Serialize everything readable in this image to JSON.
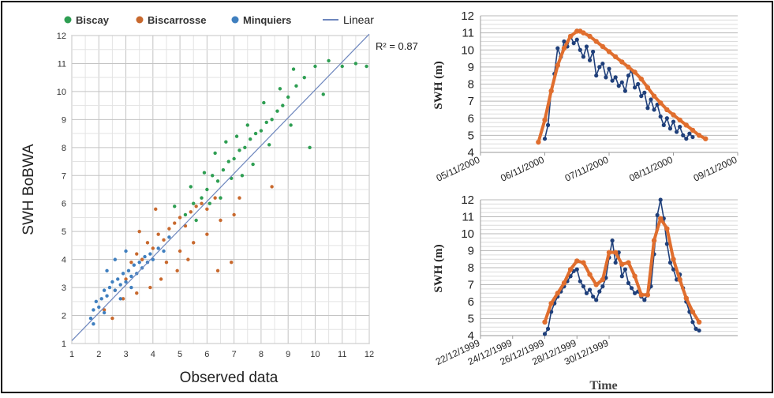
{
  "chart_data": [
    {
      "type": "scatter",
      "xlabel": "Observed data",
      "ylabel": "SWH BoBWA",
      "xlim": [
        1,
        12
      ],
      "ylim": [
        1,
        12
      ],
      "x_ticks": [
        "1",
        "2",
        "3",
        "4",
        "5",
        "6",
        "7",
        "8",
        "9",
        "10",
        "11",
        "12"
      ],
      "y_ticks": [
        "1",
        "2",
        "3",
        "4",
        "5",
        "6",
        "7",
        "8",
        "9",
        "10",
        "11",
        "12"
      ],
      "grid": true,
      "legend_position": "top",
      "legend": [
        {
          "label": "Biscay",
          "color": "#2e9e52",
          "marker": "dot"
        },
        {
          "label": "Biscarrosse",
          "color": "#c8692e",
          "marker": "dot"
        },
        {
          "label": "Minquiers",
          "color": "#3f7fbf",
          "marker": "dot"
        },
        {
          "label": "Linear",
          "color": "#6d86bd",
          "marker": "line"
        }
      ],
      "annotation": "R² = 0.87",
      "trendline": {
        "x": [
          1,
          12
        ],
        "y": [
          1.1,
          12.05
        ]
      },
      "series": [
        {
          "name": "Biscay",
          "color": "#2e9e52",
          "points": [
            [
              5.2,
              5.6
            ],
            [
              5.5,
              6.0
            ],
            [
              5.8,
              6.2
            ],
            [
              6.0,
              6.5
            ],
            [
              6.2,
              7.0
            ],
            [
              6.4,
              6.8
            ],
            [
              6.6,
              7.2
            ],
            [
              6.8,
              7.5
            ],
            [
              7.0,
              7.6
            ],
            [
              7.2,
              7.9
            ],
            [
              7.4,
              8.0
            ],
            [
              7.6,
              8.3
            ],
            [
              7.8,
              8.5
            ],
            [
              8.0,
              8.6
            ],
            [
              8.2,
              8.9
            ],
            [
              8.4,
              9.0
            ],
            [
              8.6,
              9.3
            ],
            [
              8.8,
              9.5
            ],
            [
              9.0,
              9.8
            ],
            [
              9.3,
              10.2
            ],
            [
              9.6,
              10.5
            ],
            [
              10.0,
              10.9
            ],
            [
              10.5,
              11.1
            ],
            [
              11.0,
              10.9
            ],
            [
              11.5,
              11.0
            ],
            [
              11.9,
              10.9
            ],
            [
              4.8,
              5.9
            ],
            [
              5.4,
              6.6
            ],
            [
              5.9,
              7.1
            ],
            [
              6.3,
              7.8
            ],
            [
              6.7,
              8.2
            ],
            [
              7.1,
              8.4
            ],
            [
              7.5,
              8.8
            ],
            [
              8.1,
              9.6
            ],
            [
              8.7,
              10.1
            ],
            [
              9.2,
              10.8
            ],
            [
              6.1,
              6.0
            ],
            [
              6.9,
              6.9
            ],
            [
              7.7,
              7.4
            ],
            [
              8.3,
              8.1
            ],
            [
              9.1,
              8.8
            ],
            [
              9.8,
              8.0
            ],
            [
              10.3,
              9.9
            ],
            [
              5.6,
              5.4
            ],
            [
              6.5,
              6.2
            ],
            [
              7.3,
              7.0
            ]
          ]
        },
        {
          "name": "Biscarrosse",
          "color": "#c8692e",
          "points": [
            [
              2.2,
              2.2
            ],
            [
              2.6,
              2.9
            ],
            [
              3.0,
              3.3
            ],
            [
              3.2,
              3.9
            ],
            [
              3.4,
              4.2
            ],
            [
              3.6,
              4.0
            ],
            [
              3.8,
              4.6
            ],
            [
              4.0,
              4.4
            ],
            [
              4.2,
              4.9
            ],
            [
              4.4,
              4.7
            ],
            [
              4.6,
              5.1
            ],
            [
              4.8,
              5.3
            ],
            [
              5.0,
              5.5
            ],
            [
              5.2,
              5.2
            ],
            [
              5.4,
              5.7
            ],
            [
              5.6,
              5.9
            ],
            [
              5.8,
              6.0
            ],
            [
              6.0,
              5.8
            ],
            [
              6.3,
              6.2
            ],
            [
              3.5,
              5.0
            ],
            [
              4.1,
              5.8
            ],
            [
              4.5,
              3.9
            ],
            [
              5.0,
              4.3
            ],
            [
              5.5,
              4.6
            ],
            [
              6.0,
              4.9
            ],
            [
              6.5,
              5.4
            ],
            [
              7.0,
              5.6
            ],
            [
              7.2,
              6.2
            ],
            [
              8.4,
              6.6
            ],
            [
              6.9,
              3.9
            ],
            [
              6.4,
              3.6
            ],
            [
              5.3,
              4.0
            ],
            [
              4.9,
              3.6
            ],
            [
              4.3,
              3.3
            ],
            [
              3.9,
              3.0
            ],
            [
              3.4,
              2.8
            ],
            [
              2.9,
              2.6
            ],
            [
              2.5,
              1.9
            ]
          ]
        },
        {
          "name": "Minquiers",
          "color": "#3f7fbf",
          "points": [
            [
              1.7,
              1.9
            ],
            [
              1.8,
              2.2
            ],
            [
              1.9,
              2.5
            ],
            [
              2.0,
              2.3
            ],
            [
              2.1,
              2.6
            ],
            [
              2.2,
              2.9
            ],
            [
              2.3,
              2.7
            ],
            [
              2.4,
              3.0
            ],
            [
              2.5,
              3.2
            ],
            [
              2.6,
              2.9
            ],
            [
              2.7,
              3.3
            ],
            [
              2.8,
              3.1
            ],
            [
              2.9,
              3.5
            ],
            [
              3.0,
              3.2
            ],
            [
              3.1,
              3.6
            ],
            [
              3.2,
              3.4
            ],
            [
              3.3,
              3.8
            ],
            [
              3.4,
              3.5
            ],
            [
              3.5,
              3.9
            ],
            [
              3.6,
              3.7
            ],
            [
              3.7,
              4.1
            ],
            [
              3.8,
              3.9
            ],
            [
              3.9,
              4.2
            ],
            [
              4.0,
              4.0
            ],
            [
              4.2,
              4.4
            ],
            [
              4.4,
              4.3
            ],
            [
              4.6,
              4.8
            ],
            [
              2.3,
              3.6
            ],
            [
              2.6,
              4.0
            ],
            [
              3.0,
              4.3
            ],
            [
              1.8,
              1.7
            ],
            [
              2.2,
              2.1
            ],
            [
              2.8,
              2.6
            ],
            [
              3.2,
              3.0
            ]
          ]
        }
      ]
    },
    {
      "type": "line",
      "ylabel": "SWH (m)",
      "ylim": [
        4,
        12
      ],
      "y_ticks": [
        "4",
        "5",
        "6",
        "7",
        "8",
        "9",
        "10",
        "11",
        "12"
      ],
      "x_ticks": [
        "05/11/2000",
        "06/11/2000",
        "07/11/2000",
        "08/11/2000",
        "09/11/2000"
      ],
      "grid": "horizontal",
      "series": [
        {
          "color": "#1f3f7a",
          "marker": "dot",
          "x": [
            1.0,
            1.05,
            1.1,
            1.15,
            1.2,
            1.25,
            1.3,
            1.35,
            1.4,
            1.45,
            1.5,
            1.55,
            1.6,
            1.65,
            1.7,
            1.75,
            1.8,
            1.85,
            1.9,
            1.95,
            2.0,
            2.05,
            2.1,
            2.15,
            2.2,
            2.25,
            2.3,
            2.35,
            2.4,
            2.45,
            2.5,
            2.55,
            2.6,
            2.65,
            2.7,
            2.75,
            2.8,
            2.85,
            2.9,
            2.95,
            3.0,
            3.05,
            3.1,
            3.15,
            3.2,
            3.25,
            3.3
          ],
          "y": [
            4.8,
            5.6,
            7.6,
            8.6,
            10.1,
            9.6,
            10.5,
            10.2,
            10.8,
            10.4,
            10.6,
            10.0,
            9.6,
            10.2,
            9.4,
            9.9,
            8.5,
            9.0,
            9.2,
            8.4,
            8.9,
            8.2,
            8.4,
            7.9,
            8.1,
            7.6,
            8.5,
            8.8,
            7.8,
            8.0,
            7.3,
            7.5,
            6.6,
            7.1,
            6.5,
            6.8,
            6.1,
            5.6,
            6.0,
            5.4,
            5.8,
            5.2,
            5.5,
            5.0,
            4.8,
            5.1,
            4.9
          ]
        },
        {
          "color": "#e06e2e",
          "marker": "dot",
          "x": [
            0.9,
            1.0,
            1.1,
            1.2,
            1.3,
            1.4,
            1.5,
            1.55,
            1.6,
            1.7,
            1.8,
            1.9,
            2.0,
            2.1,
            2.2,
            2.3,
            2.4,
            2.5,
            2.6,
            2.7,
            2.8,
            2.9,
            3.0,
            3.1,
            3.2,
            3.3,
            3.4,
            3.5
          ],
          "y": [
            4.6,
            5.9,
            7.6,
            9.1,
            10.1,
            10.8,
            11.1,
            11.1,
            11.0,
            10.8,
            10.5,
            10.2,
            9.9,
            9.6,
            9.3,
            9.0,
            8.7,
            8.3,
            7.8,
            7.3,
            6.9,
            6.5,
            6.2,
            5.9,
            5.6,
            5.3,
            5.0,
            4.8
          ]
        }
      ]
    },
    {
      "type": "line",
      "ylabel": "SWH (m)",
      "xlabel": "Time",
      "ylim": [
        4,
        12
      ],
      "y_ticks": [
        "4",
        "5",
        "6",
        "7",
        "8",
        "9",
        "10",
        "11",
        "12"
      ],
      "x_ticks": [
        "22/12/1999",
        "24/12/1999",
        "26/12/1999",
        "28/12/1999",
        "30/12/1999"
      ],
      "grid": "horizontal",
      "series": [
        {
          "color": "#1f3f7a",
          "marker": "dot",
          "x": [
            2.0,
            2.1,
            2.2,
            2.3,
            2.4,
            2.5,
            2.6,
            2.7,
            2.8,
            2.9,
            3.0,
            3.1,
            3.2,
            3.3,
            3.4,
            3.5,
            3.6,
            3.7,
            3.8,
            3.9,
            4.0,
            4.1,
            4.2,
            4.3,
            4.4,
            4.5,
            4.6,
            4.7,
            4.8,
            4.9,
            5.0,
            5.1,
            5.2,
            5.3,
            5.4,
            5.5,
            5.6,
            5.7,
            5.8,
            5.9,
            6.0,
            6.1,
            6.2,
            6.3,
            6.4,
            6.5,
            6.6,
            6.7,
            6.8
          ],
          "y": [
            4.1,
            4.4,
            5.4,
            5.9,
            6.3,
            6.6,
            6.9,
            7.2,
            7.5,
            7.8,
            7.9,
            7.2,
            6.9,
            6.5,
            6.7,
            6.3,
            6.1,
            6.6,
            6.9,
            7.4,
            8.6,
            9.6,
            8.3,
            8.9,
            7.5,
            7.9,
            7.1,
            6.8,
            6.5,
            6.6,
            6.3,
            6.1,
            6.4,
            6.9,
            8.8,
            11.1,
            12.0,
            10.9,
            9.4,
            8.3,
            7.9,
            7.3,
            7.6,
            6.8,
            6.0,
            5.4,
            4.8,
            4.4,
            4.3
          ]
        },
        {
          "color": "#e06e2e",
          "marker": "dot",
          "x": [
            2.0,
            2.2,
            2.4,
            2.6,
            2.8,
            3.0,
            3.2,
            3.4,
            3.6,
            3.8,
            4.0,
            4.2,
            4.4,
            4.6,
            4.8,
            5.0,
            5.2,
            5.4,
            5.6,
            5.8,
            6.0,
            6.2,
            6.4,
            6.6,
            6.8
          ],
          "y": [
            4.8,
            5.9,
            6.5,
            7.1,
            7.9,
            8.4,
            8.3,
            7.6,
            7.0,
            7.3,
            8.9,
            8.9,
            8.2,
            8.3,
            7.5,
            6.4,
            6.4,
            9.6,
            10.9,
            10.3,
            8.5,
            7.3,
            6.2,
            5.4,
            4.8
          ]
        }
      ]
    }
  ]
}
